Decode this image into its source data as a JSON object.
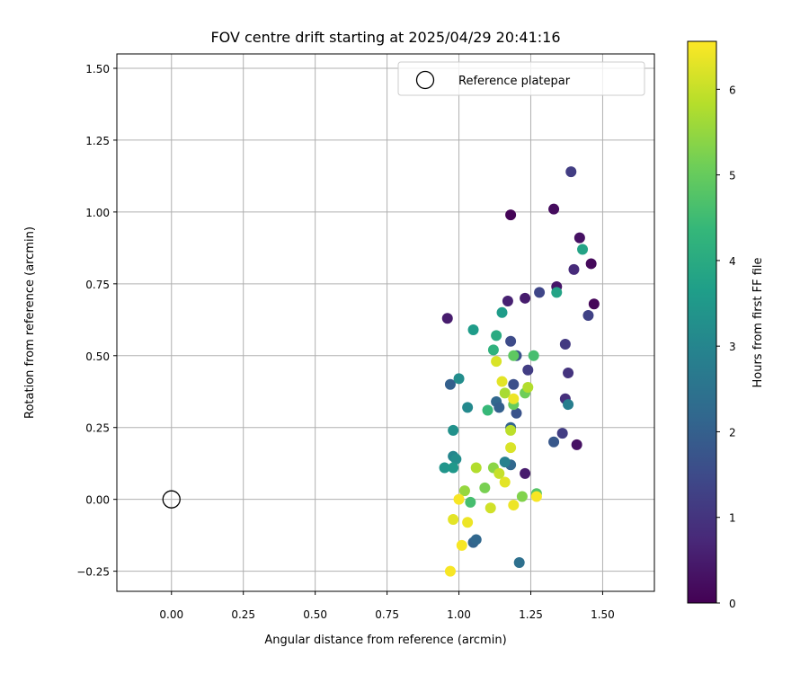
{
  "chart_data": {
    "type": "scatter",
    "title": "FOV centre drift starting at 2025/04/29 20:41:16",
    "xlabel": "Angular distance from reference (arcmin)",
    "ylabel": "Rotation from reference (arcmin)",
    "xlim": [
      -0.19,
      1.68
    ],
    "ylim": [
      -0.32,
      1.55
    ],
    "xticks": [
      0.0,
      0.25,
      0.5,
      0.75,
      1.0,
      1.25,
      1.5
    ],
    "xtick_labels": [
      "0.00",
      "0.25",
      "0.50",
      "0.75",
      "1.00",
      "1.25",
      "1.50"
    ],
    "yticks": [
      -0.25,
      0.0,
      0.25,
      0.5,
      0.75,
      1.0,
      1.25,
      1.5
    ],
    "ytick_labels": [
      "−0.25",
      "0.00",
      "0.25",
      "0.50",
      "0.75",
      "1.00",
      "1.25",
      "1.50"
    ],
    "grid": true,
    "legend": {
      "placement": "top-right",
      "entries": [
        "Reference platepar"
      ]
    },
    "reference_point": {
      "label": "Reference platepar",
      "x": 0.0,
      "y": 0.0,
      "marker": "open-circle"
    },
    "colorbar": {
      "label": "Hours from first FF file",
      "min": 0,
      "max": 6.56,
      "ticks": [
        0,
        1,
        2,
        3,
        4,
        5,
        6
      ],
      "colormap": "viridis",
      "stops": [
        "#440154",
        "#482878",
        "#3e4989",
        "#31688e",
        "#26828e",
        "#1f9e89",
        "#35b779",
        "#6ece58",
        "#b5de2b",
        "#fde725"
      ]
    },
    "points": [
      {
        "x": 1.18,
        "y": 0.99,
        "c": 0.05
      },
      {
        "x": 1.33,
        "y": 1.01,
        "c": 0.2
      },
      {
        "x": 1.42,
        "y": 0.91,
        "c": 0.3
      },
      {
        "x": 1.46,
        "y": 0.82,
        "c": 0.15
      },
      {
        "x": 1.47,
        "y": 0.68,
        "c": 0.1
      },
      {
        "x": 1.34,
        "y": 0.74,
        "c": 0.4
      },
      {
        "x": 1.23,
        "y": 0.7,
        "c": 0.5
      },
      {
        "x": 1.17,
        "y": 0.69,
        "c": 0.6
      },
      {
        "x": 0.96,
        "y": 0.63,
        "c": 0.5
      },
      {
        "x": 1.41,
        "y": 0.19,
        "c": 0.3
      },
      {
        "x": 1.23,
        "y": 0.09,
        "c": 0.5
      },
      {
        "x": 1.39,
        "y": 1.14,
        "c": 1.2
      },
      {
        "x": 1.4,
        "y": 0.8,
        "c": 0.8
      },
      {
        "x": 1.45,
        "y": 0.64,
        "c": 1.3
      },
      {
        "x": 1.28,
        "y": 0.72,
        "c": 1.4
      },
      {
        "x": 1.37,
        "y": 0.54,
        "c": 1.1
      },
      {
        "x": 1.18,
        "y": 0.55,
        "c": 1.5
      },
      {
        "x": 1.38,
        "y": 0.44,
        "c": 1.0
      },
      {
        "x": 1.24,
        "y": 0.45,
        "c": 1.2
      },
      {
        "x": 1.37,
        "y": 0.35,
        "c": 0.9
      },
      {
        "x": 1.19,
        "y": 0.4,
        "c": 1.6
      },
      {
        "x": 1.2,
        "y": 0.3,
        "c": 1.7
      },
      {
        "x": 1.36,
        "y": 0.23,
        "c": 1.2
      },
      {
        "x": 1.33,
        "y": 0.2,
        "c": 1.8
      },
      {
        "x": 1.2,
        "y": 0.5,
        "c": 1.7
      },
      {
        "x": 0.97,
        "y": 0.4,
        "c": 2.0
      },
      {
        "x": 1.13,
        "y": 0.34,
        "c": 2.2
      },
      {
        "x": 1.14,
        "y": 0.32,
        "c": 2.0
      },
      {
        "x": 1.18,
        "y": 0.25,
        "c": 2.1
      },
      {
        "x": 1.18,
        "y": 0.12,
        "c": 2.2
      },
      {
        "x": 1.21,
        "y": -0.22,
        "c": 2.4
      },
      {
        "x": 1.05,
        "y": -0.15,
        "c": 2.1
      },
      {
        "x": 1.06,
        "y": -0.14,
        "c": 2.2
      },
      {
        "x": 1.38,
        "y": 0.33,
        "c": 2.8
      },
      {
        "x": 1.16,
        "y": 0.13,
        "c": 2.9
      },
      {
        "x": 1.0,
        "y": 0.42,
        "c": 3.2
      },
      {
        "x": 1.03,
        "y": 0.32,
        "c": 3.1
      },
      {
        "x": 0.98,
        "y": 0.24,
        "c": 3.3
      },
      {
        "x": 0.98,
        "y": 0.15,
        "c": 3.0
      },
      {
        "x": 0.99,
        "y": 0.14,
        "c": 3.2
      },
      {
        "x": 0.95,
        "y": 0.11,
        "c": 3.4
      },
      {
        "x": 0.98,
        "y": 0.11,
        "c": 3.5
      },
      {
        "x": 1.05,
        "y": 0.59,
        "c": 3.6
      },
      {
        "x": 1.15,
        "y": 0.65,
        "c": 3.6
      },
      {
        "x": 1.34,
        "y": 0.72,
        "c": 3.8
      },
      {
        "x": 1.43,
        "y": 0.87,
        "c": 3.8
      },
      {
        "x": 1.13,
        "y": 0.57,
        "c": 4.0
      },
      {
        "x": 1.12,
        "y": 0.52,
        "c": 4.2
      },
      {
        "x": 1.26,
        "y": 0.5,
        "c": 4.6
      },
      {
        "x": 1.1,
        "y": 0.31,
        "c": 4.4
      },
      {
        "x": 1.04,
        "y": -0.01,
        "c": 4.6
      },
      {
        "x": 1.27,
        "y": 0.02,
        "c": 4.8
      },
      {
        "x": 1.19,
        "y": 0.5,
        "c": 4.9
      },
      {
        "x": 1.19,
        "y": 0.33,
        "c": 5.0
      },
      {
        "x": 1.23,
        "y": 0.37,
        "c": 5.1
      },
      {
        "x": 1.09,
        "y": 0.04,
        "c": 5.2
      },
      {
        "x": 1.22,
        "y": 0.01,
        "c": 5.3
      },
      {
        "x": 1.12,
        "y": 0.11,
        "c": 5.4
      },
      {
        "x": 1.02,
        "y": 0.03,
        "c": 5.5
      },
      {
        "x": 1.16,
        "y": 0.37,
        "c": 5.7
      },
      {
        "x": 1.24,
        "y": 0.39,
        "c": 5.8
      },
      {
        "x": 1.06,
        "y": 0.11,
        "c": 5.8
      },
      {
        "x": 1.18,
        "y": 0.24,
        "c": 5.9
      },
      {
        "x": 1.14,
        "y": 0.09,
        "c": 6.0
      },
      {
        "x": 1.11,
        "y": -0.03,
        "c": 6.1
      },
      {
        "x": 1.13,
        "y": 0.48,
        "c": 6.2
      },
      {
        "x": 1.15,
        "y": 0.41,
        "c": 6.3
      },
      {
        "x": 1.19,
        "y": 0.35,
        "c": 6.4
      },
      {
        "x": 1.18,
        "y": 0.18,
        "c": 6.2
      },
      {
        "x": 1.16,
        "y": 0.06,
        "c": 6.3
      },
      {
        "x": 1.19,
        "y": -0.02,
        "c": 6.4
      },
      {
        "x": 1.27,
        "y": 0.01,
        "c": 6.5
      },
      {
        "x": 1.0,
        "y": 0.0,
        "c": 6.5
      },
      {
        "x": 0.98,
        "y": -0.07,
        "c": 6.3
      },
      {
        "x": 1.03,
        "y": -0.08,
        "c": 6.4
      },
      {
        "x": 1.01,
        "y": -0.16,
        "c": 6.5
      },
      {
        "x": 0.97,
        "y": -0.25,
        "c": 6.5
      }
    ]
  }
}
